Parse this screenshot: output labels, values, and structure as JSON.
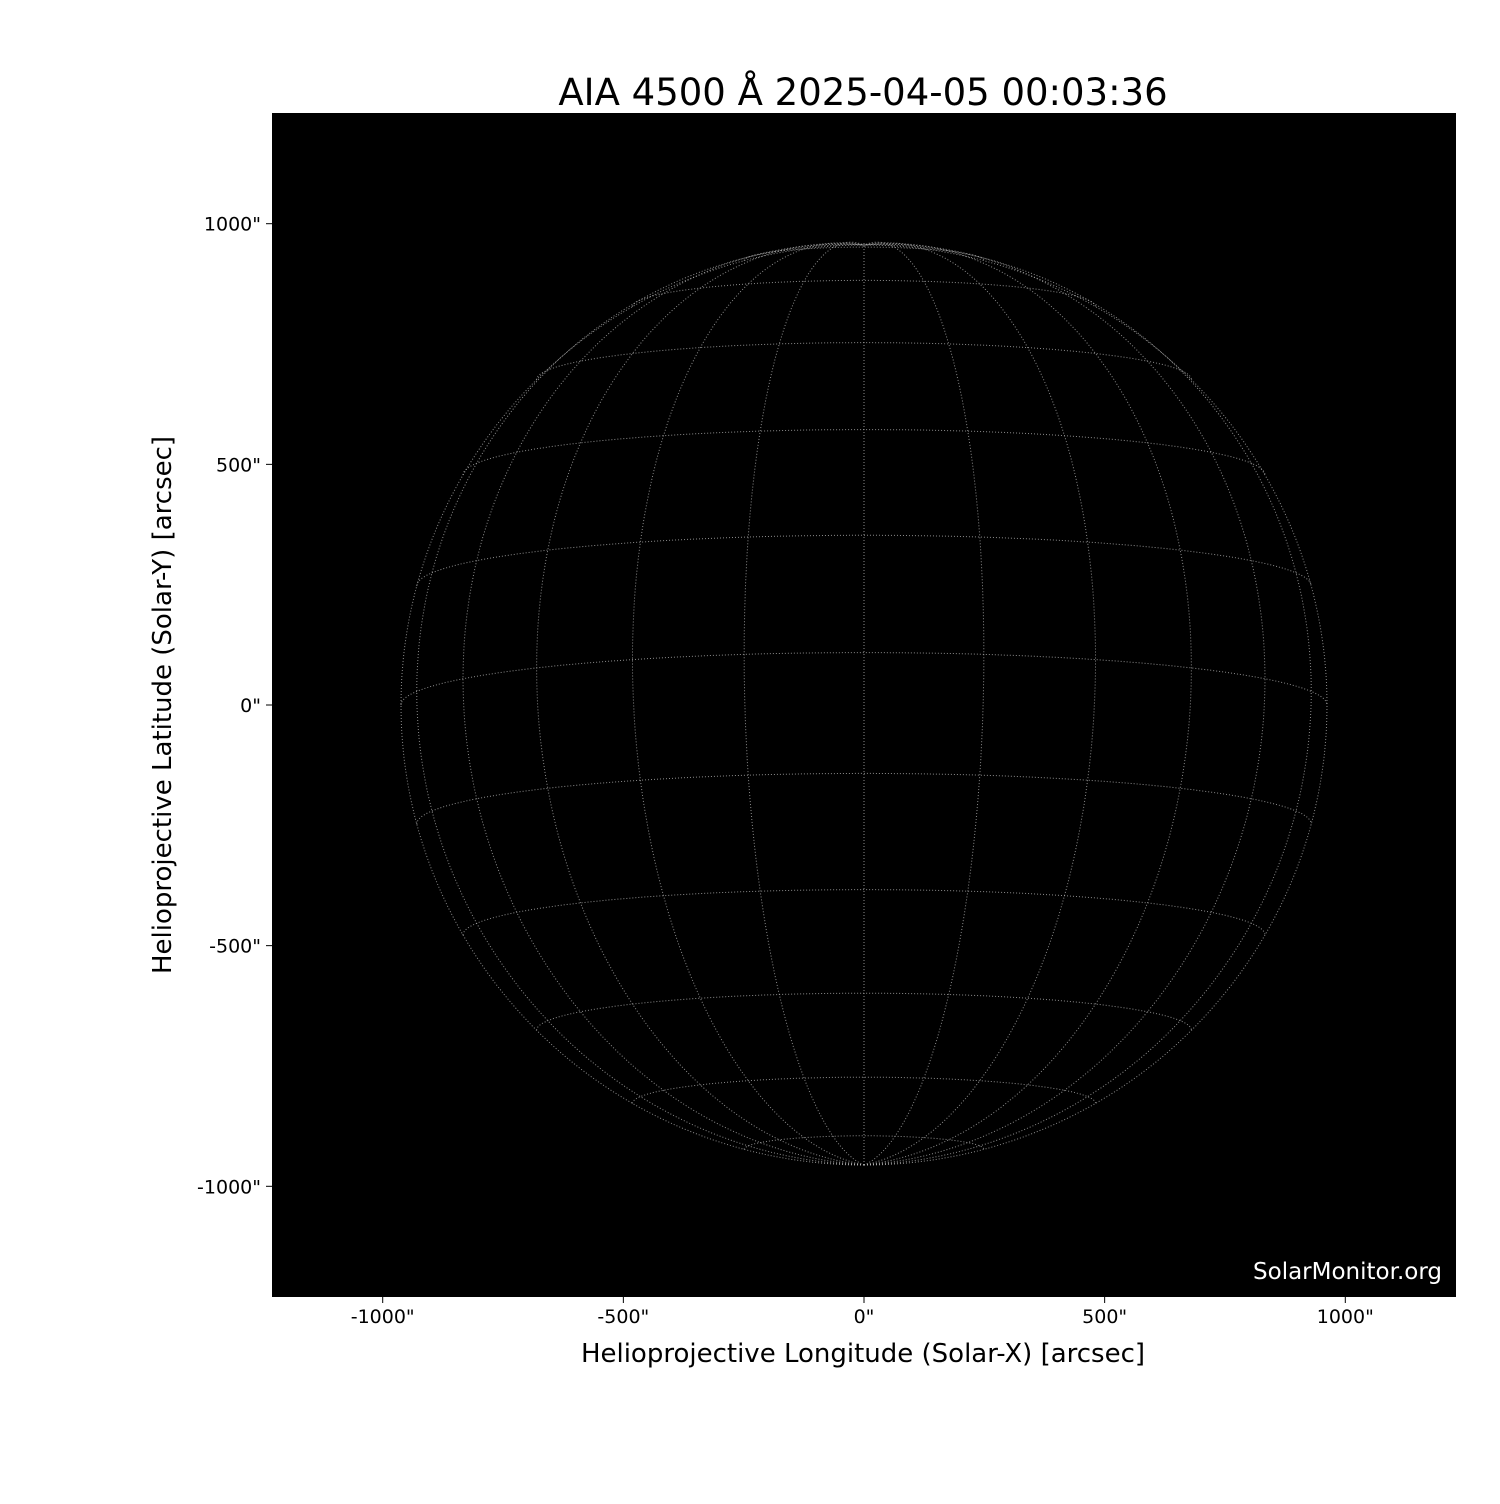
{
  "chart_data": {
    "type": "image",
    "title": "AIA 4500 Å 2025-04-05 00:03:36",
    "xlabel": "Helioprojective Longitude (Solar-X) [arcsec]",
    "ylabel": "Helioprojective Latitude (Solar-Y) [arcsec]",
    "xlim": [
      -1230,
      1230
    ],
    "ylim": [
      -1230,
      1230
    ],
    "xticks": [
      {
        "value": -1000,
        "label": "-1000\""
      },
      {
        "value": -500,
        "label": "-500\""
      },
      {
        "value": 0,
        "label": "0\""
      },
      {
        "value": 500,
        "label": "500\""
      },
      {
        "value": 1000,
        "label": "1000\""
      }
    ],
    "yticks": [
      {
        "value": 1000,
        "label": "1000\""
      },
      {
        "value": 500,
        "label": "500\""
      },
      {
        "value": 0,
        "label": "0\""
      },
      {
        "value": -500,
        "label": "-500\""
      },
      {
        "value": -1000,
        "label": "-1000\""
      }
    ],
    "solar_radius_arcsec": 962,
    "b0_deg": -6.5,
    "grid_spacing_deg": 15,
    "background_color": "#000000",
    "grid_color": "#bbbbbb",
    "watermark": "SolarMonitor.org"
  }
}
